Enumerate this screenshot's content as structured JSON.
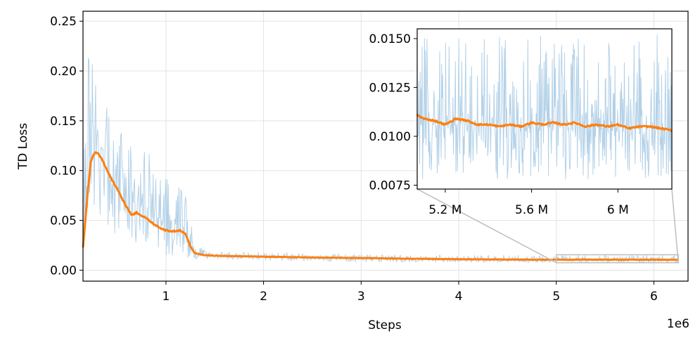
{
  "chart_data": [
    {
      "type": "line",
      "title": "",
      "xlabel": "Steps",
      "ylabel": "TD Loss",
      "x_offset_label": "1e6",
      "xlim": [
        150000,
        6350000
      ],
      "ylim": [
        -0.011,
        0.26
      ],
      "xticks": [
        1000000,
        2000000,
        3000000,
        4000000,
        5000000,
        6000000
      ],
      "xtick_labels": [
        "1",
        "2",
        "3",
        "4",
        "5",
        "6"
      ],
      "yticks": [
        0.0,
        0.05,
        0.1,
        0.15,
        0.2,
        0.25
      ],
      "ytick_labels": [
        "0.00",
        "0.05",
        "0.10",
        "0.15",
        "0.20",
        "0.25"
      ],
      "grid": true,
      "series": [
        {
          "role": "raw",
          "color": "#b3d1e8",
          "x": [
            150000,
            200000,
            250000,
            300000,
            350000,
            400000,
            500000,
            600000,
            700000,
            800000,
            900000,
            1000000,
            1100000,
            1200000,
            1250000,
            1300000,
            1400000,
            1500000,
            2000000,
            2500000,
            3000000,
            3500000,
            4000000,
            4500000,
            5000000,
            5500000,
            6000000,
            6250000
          ],
          "y": [
            0.03,
            0.1,
            0.14,
            0.13,
            0.12,
            0.11,
            0.09,
            0.075,
            0.07,
            0.06,
            0.055,
            0.05,
            0.047,
            0.045,
            0.03,
            0.018,
            0.016,
            0.015,
            0.014,
            0.013,
            0.012,
            0.0115,
            0.011,
            0.0108,
            0.0106,
            0.0106,
            0.0105,
            0.0104
          ],
          "lower": [
            0.015,
            0.04,
            0.05,
            0.05,
            0.045,
            0.04,
            0.035,
            0.025,
            0.02,
            0.02,
            0.015,
            0.015,
            0.012,
            0.012,
            0.012,
            0.011,
            0.011,
            0.011,
            0.01,
            0.009,
            0.008,
            0.008,
            0.008,
            0.0078,
            0.0078,
            0.0078,
            0.0078,
            0.0078
          ],
          "upper": [
            0.17,
            0.22,
            0.25,
            0.2,
            0.19,
            0.17,
            0.16,
            0.14,
            0.13,
            0.12,
            0.11,
            0.1,
            0.095,
            0.08,
            0.05,
            0.03,
            0.02,
            0.019,
            0.018,
            0.017,
            0.016,
            0.015,
            0.015,
            0.015,
            0.015,
            0.015,
            0.015,
            0.015
          ]
        },
        {
          "role": "smoothed",
          "color": "#ff7f0e",
          "x": [
            150000,
            200000,
            230000,
            270000,
            300000,
            350000,
            400000,
            450000,
            500000,
            550000,
            600000,
            650000,
            700000,
            750000,
            800000,
            850000,
            900000,
            950000,
            1000000,
            1100000,
            1150000,
            1200000,
            1250000,
            1300000,
            1400000,
            1500000,
            2000000,
            2500000,
            3000000,
            3500000,
            4000000,
            4500000,
            5000000,
            5500000,
            6000000,
            6250000
          ],
          "y": [
            0.022,
            0.08,
            0.11,
            0.118,
            0.118,
            0.11,
            0.1,
            0.09,
            0.082,
            0.072,
            0.063,
            0.055,
            0.058,
            0.055,
            0.052,
            0.048,
            0.045,
            0.042,
            0.04,
            0.039,
            0.04,
            0.037,
            0.024,
            0.017,
            0.015,
            0.0145,
            0.0135,
            0.0128,
            0.0122,
            0.0115,
            0.011,
            0.0107,
            0.0105,
            0.0106,
            0.0105,
            0.0104
          ]
        }
      ],
      "zoom_region": {
        "x": [
          5000000,
          6250000
        ],
        "y": [
          0.0075,
          0.0155
        ]
      }
    },
    {
      "type": "line",
      "role": "inset",
      "title": "",
      "xlim": [
        5070000,
        6250000
      ],
      "ylim": [
        0.0073,
        0.0155
      ],
      "xticks": [
        5200000,
        5600000,
        6000000
      ],
      "xtick_labels": [
        "5.2 M",
        "5.6 M",
        "6 M"
      ],
      "yticks": [
        0.0075,
        0.01,
        0.0125,
        0.015
      ],
      "ytick_labels": [
        "0.0075",
        "0.0100",
        "0.0125",
        "0.0150"
      ],
      "grid": false,
      "series": [
        {
          "role": "raw",
          "color": "#b3d1e8",
          "x": [
            5070000,
            6250000
          ],
          "center": [
            0.0106,
            0.0104
          ],
          "lower": [
            0.0078,
            0.0078
          ],
          "upper": [
            0.0152,
            0.0152
          ]
        },
        {
          "role": "smoothed",
          "color": "#ff7f0e",
          "x": [
            5070000,
            5100000,
            5150000,
            5200000,
            5250000,
            5300000,
            5350000,
            5400000,
            5450000,
            5500000,
            5550000,
            5600000,
            5650000,
            5700000,
            5750000,
            5800000,
            5850000,
            5900000,
            5950000,
            6000000,
            6050000,
            6100000,
            6150000,
            6200000,
            6250000
          ],
          "y": [
            0.0111,
            0.0109,
            0.0108,
            0.0106,
            0.0109,
            0.0108,
            0.0106,
            0.0106,
            0.0105,
            0.0106,
            0.0105,
            0.0107,
            0.0106,
            0.0107,
            0.0106,
            0.0107,
            0.0105,
            0.0106,
            0.0105,
            0.0106,
            0.0104,
            0.0105,
            0.0105,
            0.0104,
            0.0103
          ]
        }
      ]
    }
  ]
}
